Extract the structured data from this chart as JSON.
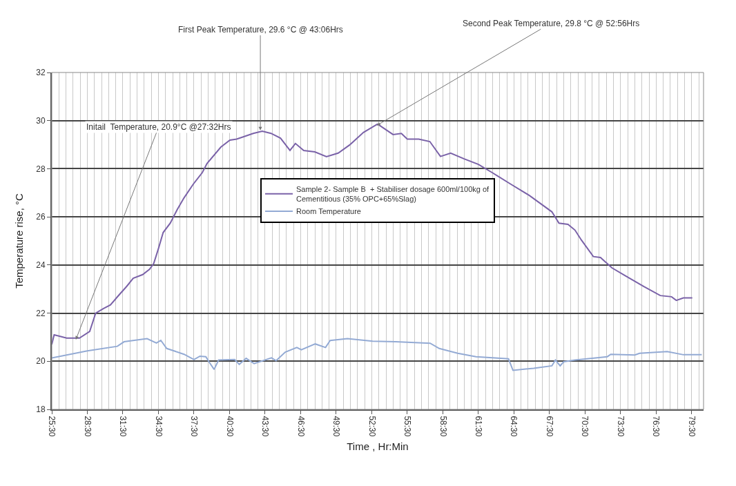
{
  "chart_data": {
    "type": "line",
    "xlabel": "Time , Hr:Min",
    "ylabel": "Temperature rise, °C",
    "xlim": [
      25.5,
      80.5
    ],
    "ylim": [
      18,
      32
    ],
    "xticks": [
      {
        "value": 25.5,
        "label": "25:30"
      },
      {
        "value": 28.5,
        "label": "28:30"
      },
      {
        "value": 31.5,
        "label": "31:30"
      },
      {
        "value": 34.5,
        "label": "34:30"
      },
      {
        "value": 37.5,
        "label": "37:30"
      },
      {
        "value": 40.5,
        "label": "40:30"
      },
      {
        "value": 43.5,
        "label": "43:30"
      },
      {
        "value": 46.5,
        "label": "46:30"
      },
      {
        "value": 49.5,
        "label": "49:30"
      },
      {
        "value": 52.5,
        "label": "52:30"
      },
      {
        "value": 55.5,
        "label": "55:30"
      },
      {
        "value": 58.5,
        "label": "58:30"
      },
      {
        "value": 61.5,
        "label": "61:30"
      },
      {
        "value": 64.5,
        "label": "64:30"
      },
      {
        "value": 67.5,
        "label": "67:30"
      },
      {
        "value": 70.5,
        "label": "70:30"
      },
      {
        "value": 73.5,
        "label": "73:30"
      },
      {
        "value": 76.5,
        "label": "76:30"
      },
      {
        "value": 79.5,
        "label": "79:30"
      }
    ],
    "yticks": [
      18,
      20,
      22,
      24,
      26,
      28,
      30,
      32
    ],
    "grid": true,
    "legend": "center",
    "marker": "none",
    "line_style": "solid",
    "series": [
      {
        "name": "Sample 2- Sample B  + Stabiliser dosage 600ml/100kg of\nCementitious (35% OPC+65%Slag)",
        "color": "#7a62a8",
        "x": [
          25.5,
          25.7,
          26.76,
          27.83,
          28.7,
          29.2,
          29.87,
          30.45,
          31.2,
          31.8,
          32.37,
          33.17,
          33.75,
          34.1,
          34.5,
          34.9,
          35.5,
          36.08,
          36.66,
          37.44,
          38.2,
          38.6,
          39.77,
          40.53,
          41.1,
          41.7,
          42.5,
          43.26,
          44.0,
          44.8,
          45.6,
          46.06,
          46.76,
          47.7,
          48.68,
          49.67,
          50.64,
          51.8,
          52.97,
          53.16,
          54.3,
          55.0,
          55.5,
          56.46,
          57.4,
          58.3,
          59.16,
          60.3,
          61.5,
          62.66,
          64.23,
          65.8,
          67.7,
          68.3,
          69.06,
          69.65,
          70.2,
          71.2,
          71.8,
          72.77,
          73.94,
          75.47,
          76.85,
          77.8,
          78.2,
          78.8,
          79.55
        ],
        "values": [
          20.7,
          21.1,
          20.96,
          20.96,
          21.24,
          22.0,
          22.19,
          22.34,
          22.77,
          23.1,
          23.45,
          23.6,
          23.82,
          24.06,
          24.68,
          25.35,
          25.74,
          26.3,
          26.79,
          27.36,
          27.84,
          28.22,
          28.9,
          29.19,
          29.23,
          29.33,
          29.47,
          29.56,
          29.47,
          29.27,
          28.76,
          29.05,
          28.76,
          28.7,
          28.5,
          28.65,
          28.99,
          29.51,
          29.85,
          29.8,
          29.42,
          29.47,
          29.23,
          29.23,
          29.13,
          28.51,
          28.65,
          28.41,
          28.18,
          27.84,
          27.36,
          26.89,
          26.21,
          25.74,
          25.69,
          25.45,
          25.03,
          24.35,
          24.31,
          23.88,
          23.54,
          23.1,
          22.73,
          22.68,
          22.53,
          22.63,
          22.63
        ]
      },
      {
        "name": "Room Temperature",
        "color": "#93aad4",
        "x": [
          25.5,
          28.5,
          31.03,
          31.6,
          33.54,
          34.33,
          34.7,
          35.2,
          36.66,
          37.5,
          38.0,
          38.5,
          38.8,
          39.2,
          39.58,
          40.93,
          41.32,
          41.9,
          42.58,
          44.04,
          44.43,
          45.2,
          46.18,
          46.56,
          47.73,
          48.6,
          48.99,
          50.45,
          52.58,
          54.52,
          57.43,
          58.2,
          59.76,
          61.3,
          64.04,
          64.42,
          66.17,
          67.7,
          68.0,
          68.4,
          68.7,
          69.66,
          72.38,
          72.67,
          74.7,
          75.1,
          77.43,
          78.8,
          80.35
        ],
        "values": [
          20.14,
          20.43,
          20.62,
          20.81,
          20.94,
          20.76,
          20.87,
          20.53,
          20.29,
          20.07,
          20.21,
          20.19,
          19.95,
          19.66,
          20.05,
          20.07,
          19.87,
          20.12,
          19.9,
          20.14,
          20.02,
          20.38,
          20.57,
          20.48,
          20.72,
          20.57,
          20.86,
          20.94,
          20.83,
          20.81,
          20.75,
          20.53,
          20.33,
          20.19,
          20.1,
          19.62,
          19.71,
          19.81,
          20.05,
          19.81,
          19.98,
          20.05,
          20.19,
          20.29,
          20.26,
          20.33,
          20.4,
          20.27,
          20.27
        ]
      }
    ],
    "annotations": [
      {
        "text": "Initail  Temperature, 20.9°C @27:32Hrs",
        "x": 27.53,
        "y": 20.9
      },
      {
        "text": "First Peak Temperature, 29.6 °C @ 43:06Hrs",
        "x": 43.1,
        "y": 29.6
      },
      {
        "text": "Second Peak Temperature, 29.8 °C @ 52:56Hrs",
        "x": 52.93,
        "y": 29.8
      }
    ]
  }
}
